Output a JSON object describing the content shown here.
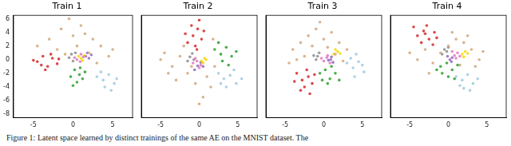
{
  "chart_data": [
    {
      "type": "scatter",
      "title": "Train 1",
      "xlim": [
        -7.5,
        7.5
      ],
      "xticks": [
        -5,
        0,
        5
      ],
      "ylim": [
        -8.5,
        6.5
      ],
      "yticks": [
        -8,
        -6,
        -4,
        -2,
        0,
        2,
        4,
        6
      ],
      "grid": false,
      "series": [
        {
          "color": "#d62728",
          "x": [
            -4.5,
            -3.8,
            -3.2,
            -2.6,
            -2.0,
            -3.5,
            -4.0,
            -2.8,
            -1.8,
            -5.0
          ],
          "y": [
            -0.3,
            0.5,
            -1.0,
            0.2,
            -0.6,
            -1.5,
            -0.8,
            0.8,
            0.1,
            -0.1
          ]
        },
        {
          "color": "#2ca02c",
          "x": [
            0.2,
            0.8,
            1.2,
            -0.3,
            0.5,
            1.5,
            0.0,
            0.9
          ],
          "y": [
            -1.5,
            -2.2,
            -2.8,
            -2.5,
            -3.3,
            -1.8,
            -3.8,
            -1.2
          ]
        },
        {
          "color": "#9ecae1",
          "x": [
            3.0,
            3.8,
            4.5,
            5.2,
            4.0,
            3.5,
            5.5,
            4.8
          ],
          "y": [
            -2.5,
            -3.0,
            -2.2,
            -3.5,
            -4.0,
            -1.8,
            -2.8,
            -4.5
          ]
        },
        {
          "color": "#d2a679",
          "x": [
            -4.5,
            -3.0,
            -1.5,
            0.0,
            1.0,
            2.5,
            3.5,
            4.5,
            -2.0,
            0.5,
            2.0,
            3.0,
            -0.5,
            1.5,
            5.0,
            -1.0
          ],
          "y": [
            2.0,
            3.0,
            4.5,
            3.5,
            5.0,
            3.0,
            2.0,
            0.5,
            1.5,
            2.0,
            1.0,
            -0.5,
            6.0,
            3.8,
            1.5,
            0.8
          ]
        },
        {
          "color": "#e377c2",
          "x": [
            0.5,
            0.9,
            1.3,
            0.2,
            1.0
          ],
          "y": [
            0.0,
            -0.3,
            0.4,
            0.3,
            0.8
          ]
        },
        {
          "color": "#f5d800",
          "x": [
            1.0,
            1.4,
            0.7,
            1.2
          ],
          "y": [
            0.2,
            0.6,
            0.5,
            -0.1
          ]
        },
        {
          "color": "#9467bd",
          "x": [
            1.6,
            2.0,
            1.8,
            2.3
          ],
          "y": [
            0.5,
            0.2,
            1.0,
            0.7
          ]
        },
        {
          "color": "#8c8c8c",
          "x": [
            -0.5,
            0.0,
            -0.2,
            0.3
          ],
          "y": [
            0.3,
            -0.2,
            0.8,
            1.0
          ]
        }
      ]
    },
    {
      "type": "scatter",
      "title": "Train 2",
      "xlim": [
        -7.5,
        7.5
      ],
      "xticks": [
        -5,
        0,
        5
      ],
      "ylim": [
        -8.5,
        6.5
      ],
      "yticks": [
        -8,
        -6,
        -4,
        -2,
        0,
        2,
        4,
        6
      ],
      "grid": false,
      "tick_labels": "x",
      "series": [
        {
          "color": "#d62728",
          "x": [
            -1.5,
            -0.8,
            -0.2,
            0.3,
            -1.0,
            -0.5,
            0.6,
            -1.8,
            0.0,
            -0.3
          ],
          "y": [
            2.5,
            3.5,
            4.5,
            3.0,
            5.0,
            2.0,
            4.2,
            3.8,
            5.8,
            1.5
          ]
        },
        {
          "color": "#2ca02c",
          "x": [
            2.0,
            2.8,
            3.5,
            4.2,
            3.0,
            2.5,
            3.8,
            4.8
          ],
          "y": [
            1.5,
            0.8,
            1.8,
            0.5,
            -0.2,
            2.5,
            -0.8,
            1.2
          ]
        },
        {
          "color": "#9ecae1",
          "x": [
            2.5,
            3.2,
            4.0,
            4.8,
            3.5,
            2.8,
            4.5,
            5.5
          ],
          "y": [
            -2.0,
            -2.8,
            -2.3,
            -3.5,
            -4.0,
            -3.5,
            -1.5,
            -2.8
          ]
        },
        {
          "color": "#d2a679",
          "x": [
            -4.5,
            -3.5,
            -2.5,
            -1.5,
            -3.0,
            -2.0,
            -4.0,
            1.0,
            1.5,
            0.5,
            -0.5,
            2.0,
            -5.0,
            -1.0,
            0.0,
            1.8
          ],
          "y": [
            1.0,
            -1.0,
            0.5,
            -2.0,
            -3.0,
            2.0,
            -2.0,
            -2.5,
            -4.0,
            -5.5,
            -3.5,
            -1.0,
            0.0,
            -1.0,
            -6.5,
            3.0
          ]
        },
        {
          "color": "#e377c2",
          "x": [
            -0.8,
            -0.3,
            0.2,
            -0.5,
            0.0
          ],
          "y": [
            -0.5,
            -0.2,
            -0.8,
            0.2,
            -1.2
          ]
        },
        {
          "color": "#f5d800",
          "x": [
            0.3,
            0.7,
            0.5,
            0.9
          ],
          "y": [
            -0.2,
            0.2,
            -0.5,
            0.0
          ]
        },
        {
          "color": "#9467bd",
          "x": [
            -0.2,
            0.2,
            -0.6,
            0.5
          ],
          "y": [
            -0.9,
            -0.4,
            -1.5,
            -1.0
          ]
        },
        {
          "color": "#8c8c8c",
          "x": [
            -1.2,
            -0.9,
            -1.5,
            -0.7
          ],
          "y": [
            0.4,
            0.9,
            -0.2,
            0.0
          ]
        }
      ]
    },
    {
      "type": "scatter",
      "title": "Train 3",
      "xlim": [
        -7.5,
        7.5
      ],
      "xticks": [
        -5,
        0,
        5
      ],
      "ylim": [
        -8.5,
        6.5
      ],
      "yticks": [
        -8,
        -6,
        -4,
        -2,
        0,
        2,
        4,
        6
      ],
      "grid": false,
      "tick_labels": "x",
      "series": [
        {
          "color": "#d62728",
          "x": [
            -3.5,
            -2.8,
            -2.0,
            -1.5,
            -2.5,
            -3.0,
            -1.2,
            -2.2,
            -3.8,
            -1.8
          ],
          "y": [
            -2.0,
            -3.0,
            -2.5,
            -3.5,
            -4.0,
            -4.5,
            -2.2,
            -1.5,
            -3.2,
            -5.0
          ]
        },
        {
          "color": "#2ca02c",
          "x": [
            -0.5,
            0.2,
            0.8,
            1.5,
            0.5,
            1.0,
            -0.2,
            2.0
          ],
          "y": [
            -2.0,
            -1.5,
            -2.8,
            -2.0,
            -3.5,
            -1.0,
            -3.0,
            -3.0
          ]
        },
        {
          "color": "#9ecae1",
          "x": [
            3.0,
            3.8,
            4.5,
            5.2,
            4.0,
            3.5,
            5.0,
            4.2
          ],
          "y": [
            -0.5,
            -1.2,
            -0.3,
            -1.8,
            -2.5,
            0.2,
            -0.8,
            0.8
          ]
        },
        {
          "color": "#d2a679",
          "x": [
            -4.0,
            -3.0,
            -2.0,
            -1.0,
            0.0,
            -2.5,
            -1.5,
            1.0,
            2.0,
            3.0,
            -0.5,
            1.5,
            -3.5,
            0.5,
            2.5,
            -4.5
          ],
          "y": [
            1.5,
            2.5,
            3.5,
            4.5,
            3.0,
            0.5,
            2.0,
            4.0,
            2.5,
            1.5,
            5.5,
            0.8,
            0.0,
            1.8,
            -0.2,
            -0.5
          ]
        },
        {
          "color": "#e377c2",
          "x": [
            0.0,
            0.4,
            0.8,
            -0.3,
            0.5
          ],
          "y": [
            -0.2,
            0.3,
            -0.5,
            0.2,
            0.6
          ]
        },
        {
          "color": "#f5d800",
          "x": [
            1.3,
            1.8,
            1.5,
            2.1
          ],
          "y": [
            0.8,
            1.2,
            1.5,
            0.9
          ]
        },
        {
          "color": "#9467bd",
          "x": [
            0.9,
            1.2,
            0.6,
            1.0
          ],
          "y": [
            0.0,
            -0.4,
            -0.1,
            0.4
          ]
        },
        {
          "color": "#8c8c8c",
          "x": [
            -0.8,
            -1.0,
            -0.6,
            -1.3
          ],
          "y": [
            0.5,
            0.0,
            1.0,
            0.6
          ]
        }
      ]
    },
    {
      "type": "scatter",
      "title": "Train 4",
      "xlim": [
        -7.5,
        7.5
      ],
      "xticks": [
        -5,
        0,
        5
      ],
      "ylim": [
        -8.5,
        6.5
      ],
      "yticks": [
        -8,
        -6,
        -4,
        -2,
        0,
        2,
        4,
        6
      ],
      "grid": false,
      "tick_labels": "x",
      "series": [
        {
          "color": "#d62728",
          "x": [
            -4.0,
            -3.2,
            -2.5,
            -1.8,
            -3.5,
            -2.8,
            -4.5,
            -2.0,
            -3.0,
            -1.5
          ],
          "y": [
            3.5,
            4.2,
            3.0,
            4.0,
            2.5,
            5.0,
            4.8,
            2.2,
            3.8,
            3.2
          ]
        },
        {
          "color": "#2ca02c",
          "x": [
            -1.0,
            -0.2,
            0.5,
            1.2,
            0.0,
            -0.8,
            0.8,
            -1.5
          ],
          "y": [
            -1.0,
            -0.5,
            -1.5,
            -0.8,
            -2.5,
            -2.0,
            -2.8,
            -1.5
          ]
        },
        {
          "color": "#9ecae1",
          "x": [
            1.0,
            1.8,
            2.5,
            3.2,
            2.0,
            1.5,
            2.8,
            3.8
          ],
          "y": [
            -2.5,
            -3.0,
            -2.2,
            -3.5,
            -4.2,
            -3.8,
            -4.5,
            -2.8
          ]
        },
        {
          "color": "#d2a679",
          "x": [
            -5.0,
            -4.0,
            -3.0,
            -2.0,
            2.0,
            3.0,
            4.0,
            1.0,
            2.5,
            3.5,
            -1.0,
            0.0,
            -2.5,
            1.5,
            4.5,
            0.5
          ],
          "y": [
            1.0,
            0.0,
            1.5,
            -0.5,
            2.5,
            1.5,
            0.0,
            3.0,
            3.5,
            -1.0,
            1.0,
            2.0,
            -2.0,
            -0.8,
            1.2,
            4.0
          ]
        },
        {
          "color": "#e377c2",
          "x": [
            0.8,
            1.2,
            0.5,
            1.0,
            1.5
          ],
          "y": [
            0.6,
            1.0,
            1.2,
            0.2,
            0.5
          ]
        },
        {
          "color": "#f5d800",
          "x": [
            1.8,
            2.2,
            2.0,
            2.5
          ],
          "y": [
            0.8,
            1.2,
            0.4,
            0.9
          ]
        },
        {
          "color": "#9467bd",
          "x": [
            0.2,
            0.5,
            -0.1,
            0.4
          ],
          "y": [
            0.0,
            0.3,
            0.5,
            -0.3
          ]
        },
        {
          "color": "#8c8c8c",
          "x": [
            -0.5,
            -0.2,
            -0.8,
            0.0
          ],
          "y": [
            1.5,
            1.2,
            0.8,
            1.8
          ]
        }
      ]
    }
  ],
  "caption": "Figure 1: Latent space learned by distinct trainings of the same AE on the MNIST dataset. The"
}
